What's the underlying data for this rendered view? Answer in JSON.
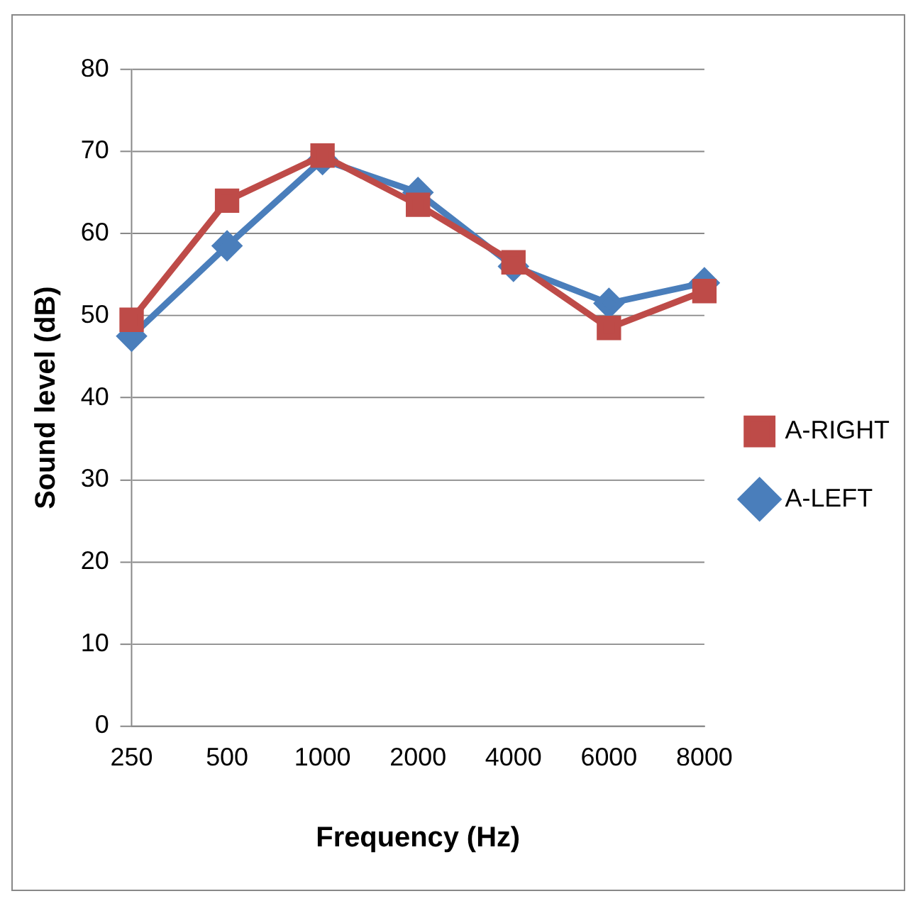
{
  "chart_data": {
    "type": "line",
    "xlabel": "Frequency (Hz)",
    "ylabel": "Sound level (dB)",
    "categories": [
      "250",
      "500",
      "1000",
      "2000",
      "4000",
      "6000",
      "8000"
    ],
    "series": [
      {
        "name": "A-LEFT",
        "color": "#4a7ebb",
        "values": [
          47.5,
          58.5,
          69,
          65,
          56,
          51.5,
          54
        ],
        "marker": "diamond"
      },
      {
        "name": "A-RIGHT",
        "color": "#be4b48",
        "values": [
          49.5,
          64,
          69.5,
          63.5,
          56.5,
          48.5,
          53
        ],
        "marker": "square"
      }
    ],
    "ylim": [
      0,
      80
    ],
    "yticks": [
      0,
      10,
      20,
      30,
      40,
      50,
      60,
      70,
      80
    ],
    "grid": "y",
    "legend": "right"
  }
}
